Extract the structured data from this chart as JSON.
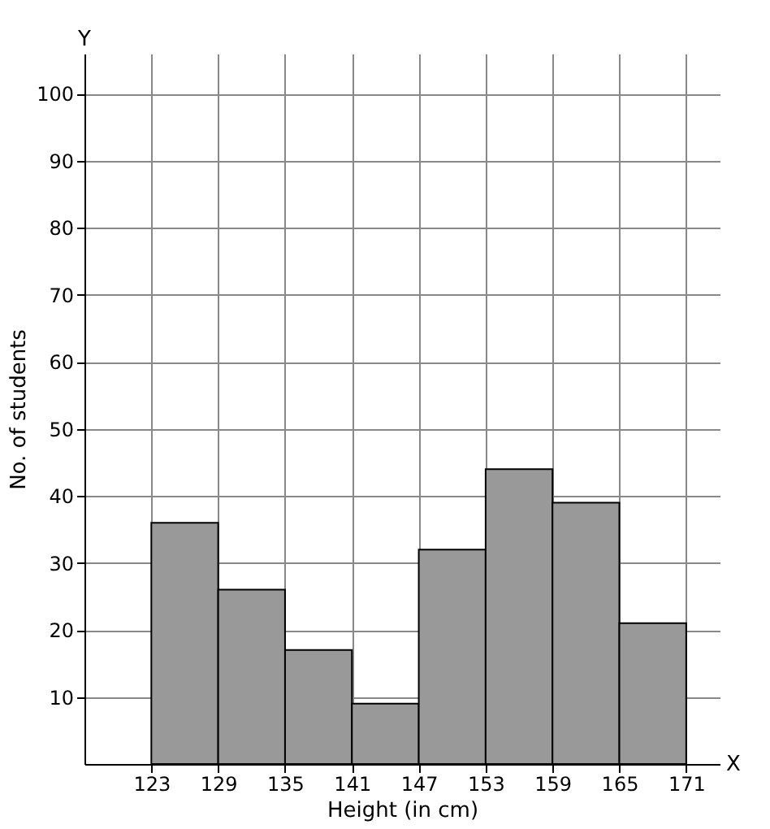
{
  "chart_data": {
    "type": "histogram",
    "xlabel": "Height (in cm)",
    "ylabel": "No. of students",
    "bins": [
      123,
      129,
      135,
      141,
      147,
      153,
      159,
      165,
      171
    ],
    "values": [
      36,
      26,
      17,
      9,
      32,
      44,
      39,
      21
    ],
    "color": "#999999",
    "xlim": [
      117,
      174
    ],
    "ylim": [
      0,
      106
    ],
    "xticks": [
      123,
      129,
      135,
      141,
      147,
      153,
      159,
      165,
      171
    ],
    "yticks": [
      10,
      20,
      30,
      40,
      50,
      60,
      70,
      80,
      90,
      100
    ],
    "annotations": [
      "X",
      "Y"
    ],
    "grid": true
  }
}
